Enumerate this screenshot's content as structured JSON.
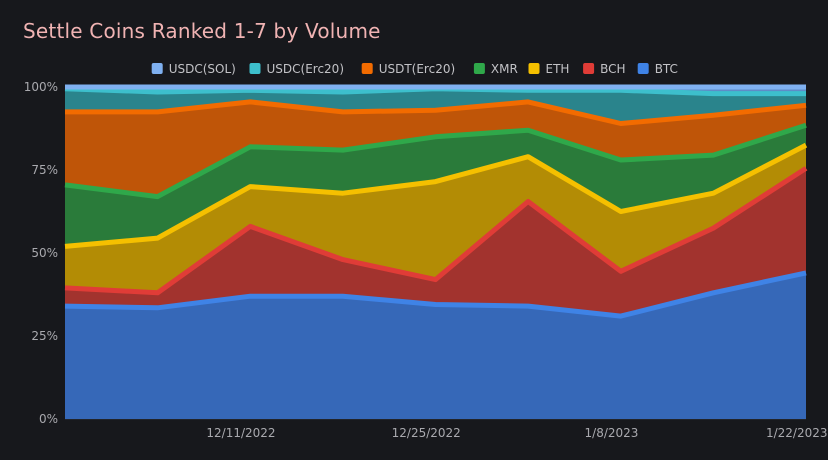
{
  "chart_data": {
    "type": "area",
    "stacked": "percent",
    "title": "Settle Coins Ranked 1-7 by Volume",
    "xlabel": "",
    "ylabel": "",
    "ylim": [
      0,
      100
    ],
    "yticks": [
      "0%",
      "25%",
      "50%",
      "75%",
      "100%"
    ],
    "x_tick_labels": [
      {
        "index": 1.9,
        "label": "12/11/2022"
      },
      {
        "index": 3.9,
        "label": "12/25/2022"
      },
      {
        "index": 5.9,
        "label": "1/8/2023"
      },
      {
        "index": 7.9,
        "label": "1/22/2023"
      }
    ],
    "x_count": 9,
    "grid": true,
    "legend_position": "top-center",
    "series": [
      {
        "name": "BTC",
        "color": "#3f83e6",
        "fill": "#3668b8",
        "values": [
          34,
          33.5,
          37,
          37,
          34.5,
          34,
          31,
          38,
          44
        ]
      },
      {
        "name": "BCH",
        "color": "#e03c37",
        "fill": "#a2332e",
        "values": [
          5.5,
          4.5,
          21,
          11,
          7.5,
          31.5,
          13.5,
          19.5,
          31.5
        ]
      },
      {
        "name": "ETH",
        "color": "#f5c000",
        "fill": "#b38c05",
        "values": [
          12.5,
          16.5,
          12,
          20,
          29.5,
          13.5,
          18,
          10.5,
          7
        ]
      },
      {
        "name": "XMR",
        "color": "#2fa84a",
        "fill": "#2a7b3a",
        "values": [
          18.5,
          12.5,
          12,
          13,
          13.5,
          8,
          15.5,
          11.5,
          6
        ]
      },
      {
        "name": "USDT(Erc20)",
        "color": "#f26b00",
        "fill": "#bf5508",
        "values": [
          22,
          25.5,
          13.5,
          11.5,
          8,
          8.5,
          11,
          12,
          6
        ]
      },
      {
        "name": "USDC(Erc20)",
        "color": "#3dbfcc",
        "fill": "#2a848c",
        "values": [
          7,
          6,
          3.5,
          6,
          6.5,
          3.5,
          10,
          6.5,
          3.5
        ]
      },
      {
        "name": "USDC(SOL)",
        "color": "#7fb0f0",
        "fill": "#5e8cc8",
        "values": [
          0.5,
          1.5,
          1,
          1.5,
          0.5,
          1,
          1,
          2,
          2
        ]
      }
    ],
    "legend_order": [
      "USDC(SOL)",
      "USDC(Erc20)",
      "USDT(Erc20)",
      "XMR",
      "ETH",
      "BCH",
      "BTC"
    ]
  }
}
